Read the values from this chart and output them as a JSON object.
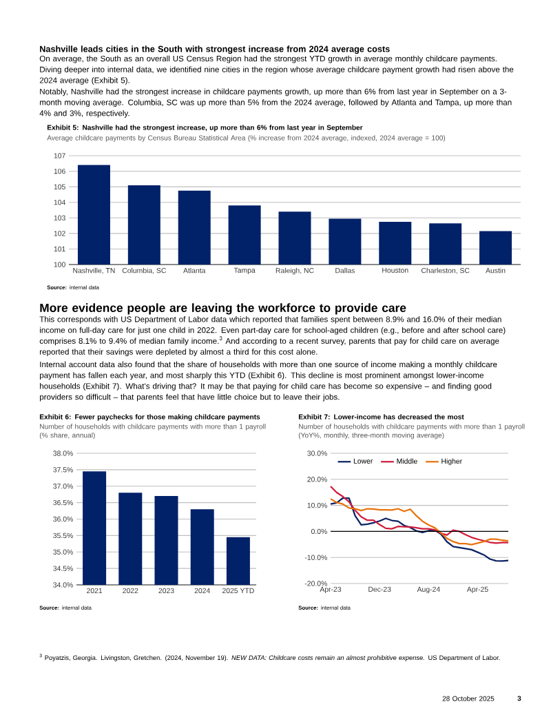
{
  "chart_data": [
    {
      "type": "bar",
      "title": "Exhibit 5: Nashville had the strongest increase, up more than 6% from last year in September",
      "subtitle": "Average childcare payments by Census Bureau Statistical Area (% increase from 2024 average, indexed, 2024 average = 100)",
      "categories": [
        "Nashville, TN",
        "Columbia, SC",
        "Atlanta",
        "Tampa",
        "Raleigh, NC",
        "Dallas",
        "Houston",
        "Charleston, SC",
        "Austin"
      ],
      "values": [
        106.4,
        105.1,
        104.75,
        103.8,
        103.4,
        102.95,
        102.75,
        102.65,
        102.15
      ],
      "color": "#012169",
      "ylim": [
        100,
        107
      ],
      "yticks": [
        100,
        101,
        102,
        103,
        104,
        105,
        106,
        107
      ],
      "grid": "y",
      "annotations": [
        "Nashville leads cities in the South with strongest increase from 2024 average costs",
        "On average, the South as an overall US Census Region had the strongest YTD growth in average monthly childcare payments. Diving deeper into internal data, we identified nine cities in the region whose average childcare payment growth had risen above the 2024 average (Exhibit 5).",
        "Notably, Nashville had the strongest increase in childcare payments growth, up more than 6% from last year in September on a 3-month moving average. Columbia, SC was up more than 5% from the 2024 average, followed by Atlanta and Tampa, up more than 4% and 3%, respectively.",
        "**Source:** internal data"
      ]
    },
    {
      "type": "bar",
      "title": "Exhibit 6: Fewer paychecks for those making childcare payments",
      "subtitle": "Number of households with childcare payments with more than 1 payroll (% share, annual)",
      "categories": [
        "2021",
        "2022",
        "2023",
        "2024",
        "2025 YTD"
      ],
      "values": [
        37.45,
        36.8,
        36.7,
        36.3,
        35.45
      ],
      "color": "#012169",
      "ylim": [
        34,
        38
      ],
      "yticks": [
        {
          "value": 34,
          "label": "34.0%"
        },
        {
          "value": 34.5,
          "label": "34.5%"
        },
        {
          "value": 35,
          "label": "35.0%"
        },
        {
          "value": 35.5,
          "label": "35.5%"
        },
        {
          "value": 36,
          "label": "36.0%"
        },
        {
          "value": 36.5,
          "label": "36.5%"
        },
        {
          "value": 37,
          "label": "37.0%"
        },
        {
          "value": 37.5,
          "label": "37.5%"
        },
        {
          "value": 38,
          "label": "38.0%"
        }
      ],
      "grid": "y",
      "annotations": [
        "More evidence people are leaving the workforce to provide care",
        "This corresponds with US Department of Labor data which reported that families spent between 8.9% and 16.0% of their median income on full-day care for just one child in 2022. Even part-day care for school-aged children (e.g., before and after school care) comprises 8.1% to 9.4% of median family income.$^{3}$ And according to a recent survey, parents that pay for child care on average reported that their savings were depleted by almost a third for this cost alone.",
        "Internal account data also found that the share of households with more than one source of income making a monthly childcare payment has fallen each year, and most sharply this YTD (Exhibit 6). This decline is most prominent amongst lower-income households (Exhibit 7). What’s driving that? It may be that paying for child care has become so expensive – and finding good providers so difficult – that parents feel that have little choice but to leave their jobs.",
        "**Source:** internal data"
      ]
    },
    {
      "type": "line",
      "title": "Exhibit 7: Lower-income has decreased the most",
      "subtitle": "Number of households with childcare payments with more than 1 payroll (YoY%, monthly, three-month moving average)",
      "x": [
        "2023-04",
        "2023-05",
        "2023-06",
        "2023-07",
        "2023-08",
        "2023-09",
        "2023-10",
        "2023-11",
        "2023-12",
        "2024-01",
        "2024-02",
        "2024-03",
        "2024-04",
        "2024-05",
        "2024-06",
        "2024-07",
        "2024-08",
        "2024-09",
        "2024-10",
        "2024-11",
        "2024-12",
        "2025-01",
        "2025-02",
        "2025-03",
        "2025-04",
        "2025-05",
        "2025-06",
        "2025-07",
        "2025-08",
        "2025-09"
      ],
      "series": [
        {
          "name": "Lower",
          "color": "#0b2265",
          "values": [
            10.5,
            11.0,
            12.8,
            12.8,
            6.0,
            2.5,
            2.8,
            3.3,
            4.0,
            5.0,
            4.2,
            3.9,
            2.3,
            1.5,
            0.2,
            -0.4,
            0.3,
            0.5,
            -1.0,
            -4.0,
            -5.8,
            -6.2,
            -6.6,
            -7.0,
            -8.0,
            -9.0,
            -10.6,
            -11.3,
            -11.4,
            -11.2
          ]
        },
        {
          "name": "Middle",
          "color": "#d01c3c",
          "values": [
            17.3,
            14.9,
            13.4,
            11.4,
            8.1,
            5.6,
            4.3,
            4.3,
            2.6,
            1.2,
            1.0,
            1.9,
            1.8,
            1.7,
            1.4,
            1.0,
            1.0,
            0.6,
            -0.7,
            -1.4,
            0.5,
            0.0,
            -1.2,
            -2.3,
            -3.0,
            -3.6,
            -4.2,
            -4.5,
            -4.3,
            -4.3
          ]
        },
        {
          "name": "Higher",
          "color": "#e8730c",
          "values": [
            12.5,
            11.1,
            10.5,
            9.0,
            8.7,
            8.0,
            8.7,
            8.6,
            8.3,
            8.3,
            8.2,
            8.7,
            7.7,
            8.5,
            6.0,
            3.9,
            2.5,
            1.4,
            -0.5,
            -2.7,
            -3.9,
            -4.7,
            -4.7,
            -5.1,
            -4.5,
            -3.9,
            -3.0,
            -3.0,
            -3.4,
            -3.6
          ]
        }
      ],
      "xlim": [
        "2023-04",
        "2025-09"
      ],
      "xticks": [
        {
          "value": "2023-04",
          "label": "Apr-23"
        },
        {
          "value": "2023-12",
          "label": "Dec-23"
        },
        {
          "value": "2024-08",
          "label": "Aug-24"
        },
        {
          "value": "2025-04",
          "label": "Apr-25"
        }
      ],
      "ylim": [
        -20,
        30
      ],
      "yticks": [
        {
          "value": -20,
          "label": "-20.0%"
        },
        {
          "value": -10,
          "label": "-10.0%"
        },
        {
          "value": 0,
          "label": "0.0%"
        },
        {
          "value": 10,
          "label": "10.0%"
        },
        {
          "value": 20,
          "label": "20.0%"
        },
        {
          "value": 30,
          "label": "30.0%"
        }
      ],
      "grid": "y",
      "legend": "top left",
      "marker": "none",
      "line_style": "solid",
      "ref_lines": [
        {
          "axis": "y",
          "value": 0,
          "color": "#000000"
        }
      ],
      "annotations": [
        "**Source:** internal data",
        "$^{3}$ Poyatzis, Georgia. Livingston, Gretchen. (2024, November 19). *NEW DATA: Childcare costs remain an almost prohibitive expense.* US Department of Labor.",
        "28 October 2025",
        "3"
      ]
    }
  ]
}
